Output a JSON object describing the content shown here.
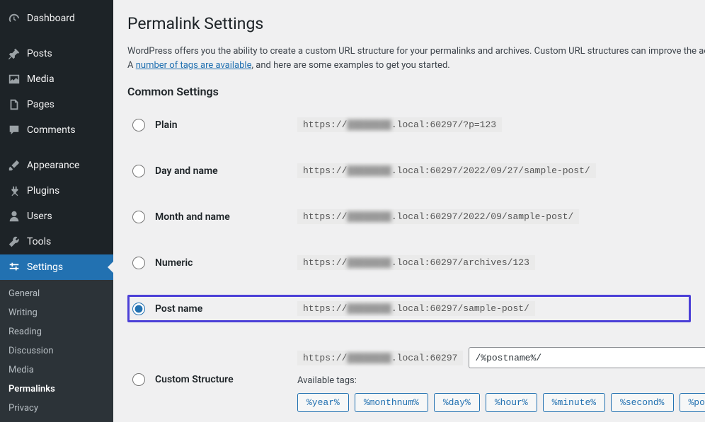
{
  "sidebar": {
    "main": [
      {
        "key": "dashboard",
        "label": "Dashboard",
        "icon": "gauge"
      },
      {
        "key": "_sep"
      },
      {
        "key": "posts",
        "label": "Posts",
        "icon": "pin"
      },
      {
        "key": "media",
        "label": "Media",
        "icon": "media"
      },
      {
        "key": "pages",
        "label": "Pages",
        "icon": "page"
      },
      {
        "key": "comments",
        "label": "Comments",
        "icon": "comment"
      },
      {
        "key": "_sep"
      },
      {
        "key": "appearance",
        "label": "Appearance",
        "icon": "brush"
      },
      {
        "key": "plugins",
        "label": "Plugins",
        "icon": "plug"
      },
      {
        "key": "users",
        "label": "Users",
        "icon": "user"
      },
      {
        "key": "tools",
        "label": "Tools",
        "icon": "wrench"
      },
      {
        "key": "settings",
        "label": "Settings",
        "icon": "sliders",
        "active": true
      }
    ],
    "sub": [
      {
        "label": "General"
      },
      {
        "label": "Writing"
      },
      {
        "label": "Reading"
      },
      {
        "label": "Discussion"
      },
      {
        "label": "Media"
      },
      {
        "label": "Permalinks",
        "current": true
      },
      {
        "label": "Privacy"
      }
    ]
  },
  "page": {
    "title": "Permalink Settings",
    "intro_pre": "WordPress offers you the ability to create a custom URL structure for your permalinks and archives. Custom URL structures can improve the ae",
    "intro_line2_a": "A ",
    "intro_link": "number of tags are available",
    "intro_line2_b": ", and here are some examples to get you started.",
    "section_heading": "Common Settings",
    "url_prefix": "https://",
    "url_blur": "████████",
    "url_host_suffix": ".local:60297",
    "options": [
      {
        "key": "plain",
        "label": "Plain",
        "suffix": "/?p=123"
      },
      {
        "key": "dayname",
        "label": "Day and name",
        "suffix": "/2022/09/27/sample-post/"
      },
      {
        "key": "monthname",
        "label": "Month and name",
        "suffix": "/2022/09/sample-post/"
      },
      {
        "key": "numeric",
        "label": "Numeric",
        "suffix": "/archives/123"
      },
      {
        "key": "postname",
        "label": "Post name",
        "suffix": "/sample-post/",
        "checked": true,
        "highlighted": true
      },
      {
        "key": "custom",
        "label": "Custom Structure",
        "custom": true
      }
    ],
    "custom_value": "/%postname%/",
    "available_tags_label": "Available tags:",
    "tags": [
      "%year%",
      "%monthnum%",
      "%day%",
      "%hour%",
      "%minute%",
      "%second%",
      "%post_id%"
    ]
  },
  "colors": {
    "highlight_border": "#4b3fd7",
    "active_menu_bg": "#2271b1",
    "link": "#2271b1",
    "sidebar_bg": "#1d2327"
  }
}
